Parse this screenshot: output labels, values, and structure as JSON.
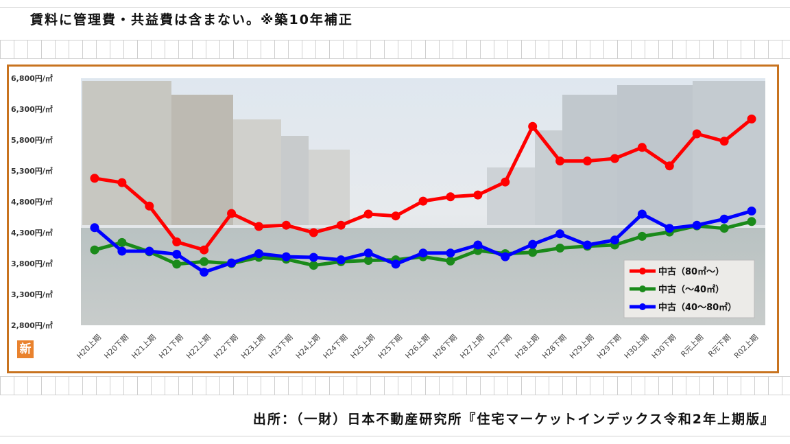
{
  "header": {
    "note": "賃料に管理費・共益費は含まない。※築10年補正"
  },
  "footer": {
    "source": "出所：（一財）日本不動産研究所『住宅マーケットインデックス令和2年上期版』"
  },
  "badge": {
    "label": "新"
  },
  "colors": {
    "frame": "#c8731f",
    "red": "#ff0000",
    "green": "#1a8a1a",
    "blue": "#0000ff"
  },
  "chart_data": {
    "type": "line",
    "title": "",
    "xlabel": "",
    "ylabel": "",
    "ylim": [
      2800,
      6800
    ],
    "yticks": [
      2800,
      3300,
      3800,
      4300,
      4800,
      5300,
      5800,
      6300,
      6800
    ],
    "ytick_labels": [
      "2,800円/㎡",
      "3,300円/㎡",
      "3,800円/㎡",
      "4,300円/㎡",
      "4,800円/㎡",
      "5,300円/㎡",
      "5,800円/㎡",
      "6,300円/㎡",
      "6,800円/㎡"
    ],
    "categories": [
      "H20上期",
      "H20下期",
      "H21上期",
      "H21下期",
      "H22上期",
      "H22下期",
      "H23上期",
      "H23下期",
      "H24上期",
      "H24下期",
      "H25上期",
      "H25下期",
      "H26上期",
      "H26下期",
      "H27上期",
      "H27下期",
      "H28上期",
      "H28下期",
      "H29上期",
      "H29下期",
      "H30上期",
      "H30下期",
      "R元上期",
      "R元下期",
      "R02上期"
    ],
    "legend_position": "bottom-right",
    "background": "photo of city canal with buildings",
    "series": [
      {
        "name": "中古（80㎡～）",
        "color": "#ff0000",
        "values": [
          5180,
          5110,
          4730,
          4150,
          4020,
          4610,
          4400,
          4420,
          4300,
          4420,
          4600,
          4570,
          4810,
          4880,
          4910,
          5120,
          6020,
          5460,
          5460,
          5500,
          5680,
          5380,
          5900,
          5780,
          6140
        ]
      },
      {
        "name": "中古（～40㎡）",
        "color": "#1a8a1a",
        "values": [
          4020,
          4140,
          3990,
          3790,
          3830,
          3800,
          3900,
          3870,
          3770,
          3830,
          3850,
          3860,
          3910,
          3840,
          4010,
          3960,
          3980,
          4050,
          4080,
          4100,
          4240,
          4310,
          4410,
          4370,
          4480
        ]
      },
      {
        "name": "中古（40～80㎡）",
        "color": "#0000ff",
        "values": [
          4380,
          4000,
          4000,
          3950,
          3660,
          3810,
          3960,
          3910,
          3900,
          3860,
          3970,
          3790,
          3970,
          3970,
          4100,
          3910,
          4110,
          4280,
          4100,
          4180,
          4600,
          4370,
          4420,
          4520,
          4650
        ]
      }
    ]
  }
}
